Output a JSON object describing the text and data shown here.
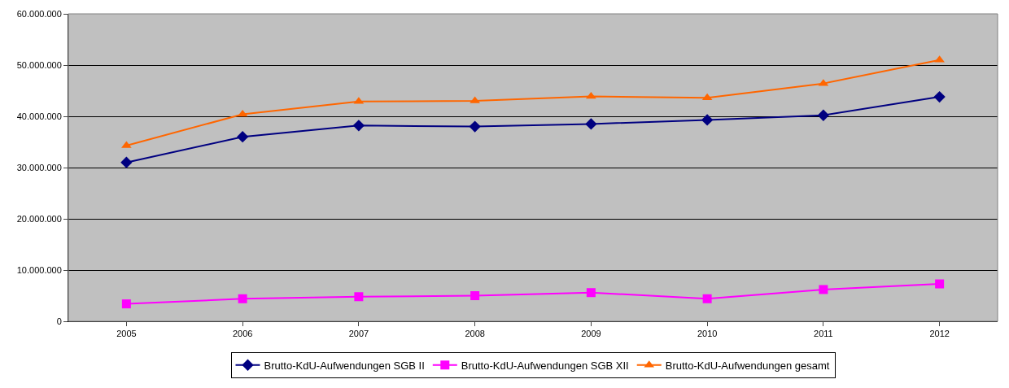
{
  "chart_data": {
    "type": "line",
    "categories": [
      "2005",
      "2006",
      "2007",
      "2008",
      "2009",
      "2010",
      "2011",
      "2012"
    ],
    "series": [
      {
        "name": "Brutto-KdU-Aufwendungen SGB II",
        "color": "#000080",
        "marker": "diamond",
        "values": [
          31000000,
          36000000,
          38200000,
          38000000,
          38500000,
          39300000,
          40200000,
          43800000
        ]
      },
      {
        "name": "Brutto-KdU-Aufwendungen SGB XII",
        "color": "#ff00ff",
        "marker": "square",
        "values": [
          3400000,
          4400000,
          4800000,
          5000000,
          5600000,
          4400000,
          6200000,
          7300000
        ]
      },
      {
        "name": "Brutto-KdU-Aufwendungen gesamt",
        "color": "#ff6600",
        "marker": "triangle",
        "values": [
          34300000,
          40400000,
          42900000,
          43000000,
          43900000,
          43600000,
          46400000,
          51000000
        ]
      }
    ],
    "ylim": [
      0,
      60000000
    ],
    "yticks": [
      {
        "value": 0,
        "label": "0"
      },
      {
        "value": 10000000,
        "label": "10.000.000"
      },
      {
        "value": 20000000,
        "label": "20.000.000"
      },
      {
        "value": 30000000,
        "label": "30.000.000"
      },
      {
        "value": 40000000,
        "label": "40.000.000"
      },
      {
        "value": 50000000,
        "label": "50.000.000"
      },
      {
        "value": 60000000,
        "label": "60.000.000"
      }
    ],
    "grid": "y",
    "legend": "bottom"
  }
}
